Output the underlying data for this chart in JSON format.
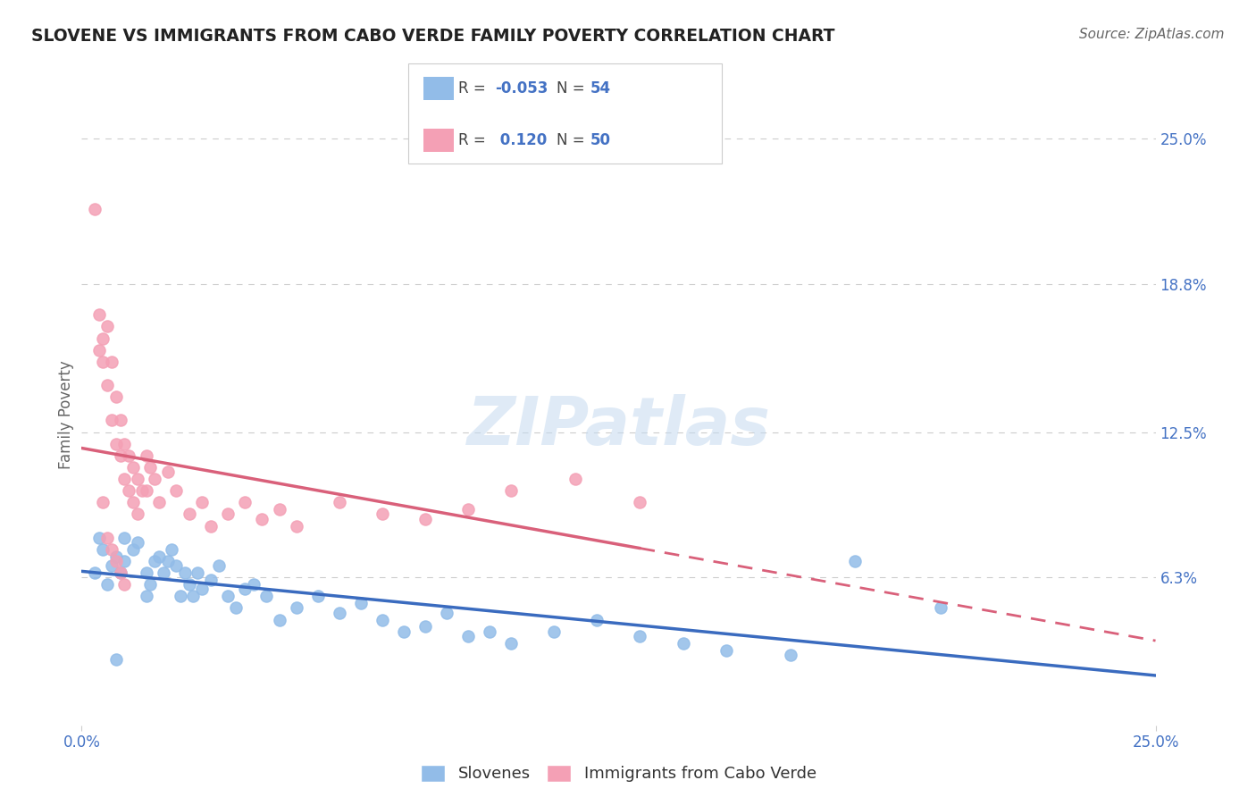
{
  "title": "SLOVENE VS IMMIGRANTS FROM CABO VERDE FAMILY POVERTY CORRELATION CHART",
  "source": "Source: ZipAtlas.com",
  "ylabel": "Family Poverty",
  "xlim": [
    0.0,
    0.25
  ],
  "ylim": [
    0.0,
    0.265
  ],
  "xticks": [
    0.0,
    0.25
  ],
  "xticklabels": [
    "0.0%",
    "25.0%"
  ],
  "ytick_right_labels": [
    "25.0%",
    "18.8%",
    "12.5%",
    "6.3%"
  ],
  "ytick_right_values": [
    0.25,
    0.188,
    0.125,
    0.063
  ],
  "grid_values": [
    0.25,
    0.188,
    0.125,
    0.063
  ],
  "r_slovene": -0.053,
  "n_slovene": 54,
  "r_cabo_verde": 0.12,
  "n_cabo_verde": 50,
  "color_slovene": "#92bce8",
  "color_cabo_verde": "#f4a0b5",
  "trendline_slovene_color": "#3a6bbf",
  "trendline_cabo_verde_color": "#d9607a",
  "watermark": "ZIPatlas",
  "legend_label_slovene": "Slovenes",
  "legend_label_cabo_verde": "Immigrants from Cabo Verde",
  "slovene_x": [
    0.005,
    0.007,
    0.008,
    0.009,
    0.01,
    0.01,
    0.012,
    0.013,
    0.015,
    0.015,
    0.016,
    0.017,
    0.018,
    0.019,
    0.02,
    0.021,
    0.022,
    0.023,
    0.024,
    0.025,
    0.026,
    0.027,
    0.028,
    0.03,
    0.032,
    0.034,
    0.036,
    0.038,
    0.04,
    0.043,
    0.046,
    0.05,
    0.055,
    0.06,
    0.065,
    0.07,
    0.075,
    0.08,
    0.085,
    0.09,
    0.095,
    0.1,
    0.11,
    0.12,
    0.13,
    0.14,
    0.15,
    0.165,
    0.18,
    0.2,
    0.003,
    0.004,
    0.006,
    0.008
  ],
  "slovene_y": [
    0.075,
    0.068,
    0.072,
    0.065,
    0.07,
    0.08,
    0.075,
    0.078,
    0.065,
    0.055,
    0.06,
    0.07,
    0.072,
    0.065,
    0.07,
    0.075,
    0.068,
    0.055,
    0.065,
    0.06,
    0.055,
    0.065,
    0.058,
    0.062,
    0.068,
    0.055,
    0.05,
    0.058,
    0.06,
    0.055,
    0.045,
    0.05,
    0.055,
    0.048,
    0.052,
    0.045,
    0.04,
    0.042,
    0.048,
    0.038,
    0.04,
    0.035,
    0.04,
    0.045,
    0.038,
    0.035,
    0.032,
    0.03,
    0.07,
    0.05,
    0.065,
    0.08,
    0.06,
    0.028
  ],
  "cabo_verde_x": [
    0.003,
    0.004,
    0.004,
    0.005,
    0.005,
    0.006,
    0.006,
    0.007,
    0.007,
    0.008,
    0.008,
    0.009,
    0.009,
    0.01,
    0.01,
    0.011,
    0.011,
    0.012,
    0.012,
    0.013,
    0.013,
    0.014,
    0.015,
    0.015,
    0.016,
    0.017,
    0.018,
    0.02,
    0.022,
    0.025,
    0.028,
    0.03,
    0.034,
    0.038,
    0.042,
    0.046,
    0.05,
    0.06,
    0.07,
    0.08,
    0.09,
    0.1,
    0.115,
    0.13,
    0.005,
    0.006,
    0.007,
    0.008,
    0.009,
    0.01
  ],
  "cabo_verde_y": [
    0.22,
    0.16,
    0.175,
    0.165,
    0.155,
    0.17,
    0.145,
    0.155,
    0.13,
    0.14,
    0.12,
    0.13,
    0.115,
    0.12,
    0.105,
    0.115,
    0.1,
    0.11,
    0.095,
    0.105,
    0.09,
    0.1,
    0.115,
    0.1,
    0.11,
    0.105,
    0.095,
    0.108,
    0.1,
    0.09,
    0.095,
    0.085,
    0.09,
    0.095,
    0.088,
    0.092,
    0.085,
    0.095,
    0.09,
    0.088,
    0.092,
    0.1,
    0.105,
    0.095,
    0.095,
    0.08,
    0.075,
    0.07,
    0.065,
    0.06
  ],
  "trendline_cv_x_solid_end": 0.13,
  "trendline_cv_x_dash_end": 0.25
}
